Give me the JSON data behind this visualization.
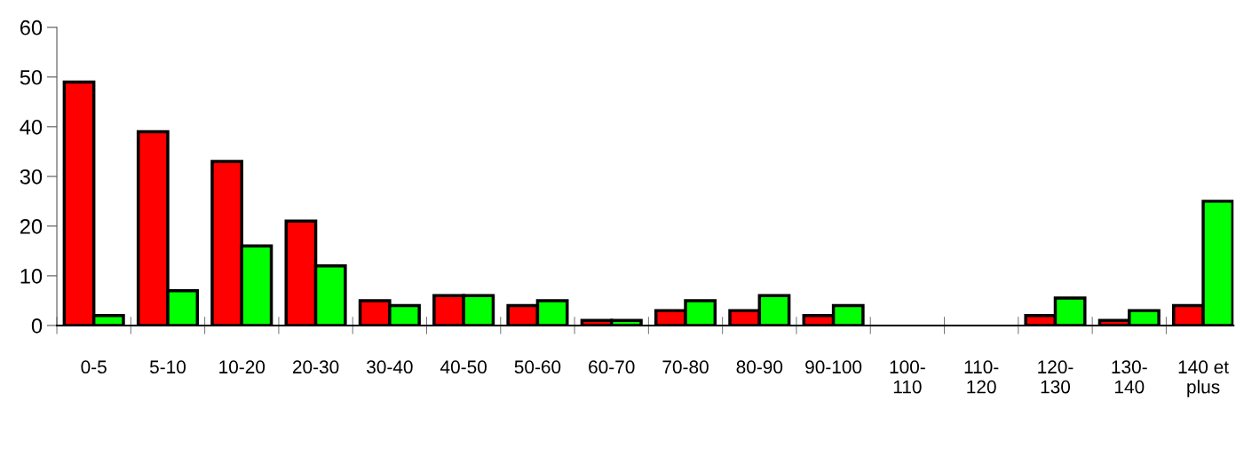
{
  "chart_data": {
    "type": "bar",
    "categories": [
      "0-5",
      "5-10",
      "10-20",
      "20-30",
      "30-40",
      "40-50",
      "50-60",
      "60-70",
      "70-80",
      "80-90",
      "90-100",
      "100-\n110",
      "110-\n120",
      "120-\n130",
      "130-\n140",
      "140 et\nplus"
    ],
    "series": [
      {
        "color": "#ff0000",
        "values": [
          49,
          39,
          33,
          21,
          5,
          6,
          4,
          1,
          3,
          3,
          2,
          null,
          null,
          2,
          1,
          4
        ]
      },
      {
        "color": "#00ff00",
        "values": [
          2,
          7,
          16,
          12,
          4,
          6,
          5,
          1,
          5,
          6,
          4,
          null,
          null,
          5.5,
          3,
          25
        ]
      }
    ],
    "ylim": [
      0,
      60
    ],
    "yticks": [
      0,
      10,
      20,
      30,
      40,
      50,
      60
    ],
    "grid": false,
    "legend": false
  }
}
